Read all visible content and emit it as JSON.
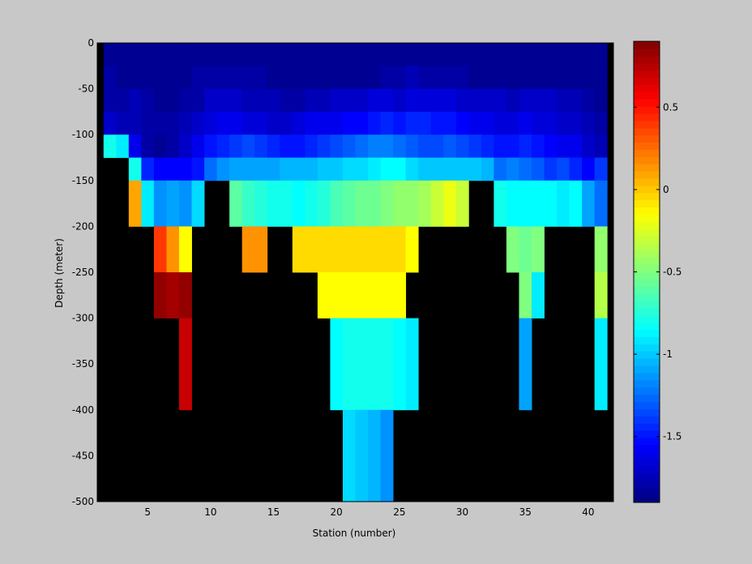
{
  "chart_data": {
    "type": "heatmap",
    "title": "",
    "xlabel": "Station (number)",
    "ylabel": "Depth (meter)",
    "xlim": [
      1,
      42
    ],
    "ylim": [
      -500,
      0
    ],
    "x_ticks": [
      5,
      10,
      15,
      20,
      25,
      30,
      35,
      40
    ],
    "y_ticks": [
      0,
      -50,
      -100,
      -150,
      -200,
      -250,
      -300,
      -350,
      -400,
      -450,
      -500
    ],
    "colorbar": {
      "colormap": "jet",
      "clim": [
        -1.9,
        0.9
      ],
      "ticks": [
        0.5,
        0,
        -0.5,
        -1,
        -1.5
      ]
    },
    "missing_color": "#000000",
    "stations": [
      2,
      3,
      4,
      5,
      6,
      7,
      8,
      9,
      10,
      11,
      12,
      13,
      14,
      15,
      16,
      17,
      18,
      19,
      20,
      21,
      22,
      23,
      24,
      25,
      26,
      27,
      28,
      29,
      30,
      31,
      32,
      33,
      34,
      35,
      36,
      37,
      38,
      39,
      40,
      41
    ],
    "depth_layers": [
      {
        "top": 0,
        "bottom": -25
      },
      {
        "top": -25,
        "bottom": -50
      },
      {
        "top": -50,
        "bottom": -75
      },
      {
        "top": -75,
        "bottom": -100
      },
      {
        "top": -100,
        "bottom": -125
      },
      {
        "top": -125,
        "bottom": -150
      },
      {
        "top": -150,
        "bottom": -200
      },
      {
        "top": -200,
        "bottom": -250
      },
      {
        "top": -250,
        "bottom": -300
      },
      {
        "top": -300,
        "bottom": -400
      },
      {
        "top": -400,
        "bottom": -500
      }
    ],
    "values": [
      [
        -1.85,
        -1.85,
        -1.85,
        -1.85,
        -1.85,
        -1.85,
        -1.85,
        -1.85,
        -1.85,
        -1.85,
        -1.85,
        -1.85,
        -1.85,
        -1.85,
        -1.85,
        -1.85,
        -1.85,
        -1.85,
        -1.85,
        -1.85,
        -1.85,
        -1.85,
        -1.85,
        -1.85,
        -1.85,
        -1.85,
        -1.85,
        -1.85,
        -1.85,
        -1.85,
        -1.85,
        -1.85,
        -1.85,
        -1.85,
        -1.85,
        -1.85,
        -1.85,
        -1.85,
        -1.85,
        -1.85
      ],
      [
        -1.8,
        -1.85,
        -1.85,
        -1.85,
        -1.85,
        -1.85,
        -1.85,
        -1.8,
        -1.8,
        -1.8,
        -1.8,
        -1.8,
        -1.8,
        -1.85,
        -1.85,
        -1.85,
        -1.85,
        -1.85,
        -1.85,
        -1.85,
        -1.85,
        -1.85,
        -1.8,
        -1.8,
        -1.75,
        -1.8,
        -1.8,
        -1.8,
        -1.8,
        -1.85,
        -1.85,
        -1.85,
        -1.85,
        -1.85,
        -1.85,
        -1.85,
        -1.85,
        -1.85,
        -1.85,
        -1.85
      ],
      [
        -1.8,
        -1.8,
        -1.75,
        -1.8,
        -1.85,
        -1.85,
        -1.8,
        -1.8,
        -1.7,
        -1.7,
        -1.7,
        -1.75,
        -1.75,
        -1.75,
        -1.8,
        -1.8,
        -1.75,
        -1.75,
        -1.7,
        -1.7,
        -1.7,
        -1.65,
        -1.65,
        -1.7,
        -1.65,
        -1.65,
        -1.65,
        -1.65,
        -1.7,
        -1.7,
        -1.7,
        -1.7,
        -1.75,
        -1.7,
        -1.7,
        -1.7,
        -1.75,
        -1.75,
        -1.8,
        -1.85
      ],
      [
        -1.7,
        -1.75,
        -1.75,
        -1.8,
        -1.8,
        -1.8,
        -1.75,
        -1.7,
        -1.65,
        -1.6,
        -1.6,
        -1.65,
        -1.65,
        -1.7,
        -1.7,
        -1.65,
        -1.6,
        -1.6,
        -1.6,
        -1.55,
        -1.55,
        -1.5,
        -1.45,
        -1.5,
        -1.45,
        -1.45,
        -1.5,
        -1.5,
        -1.55,
        -1.6,
        -1.6,
        -1.65,
        -1.65,
        -1.6,
        -1.65,
        -1.65,
        -1.7,
        -1.7,
        -1.75,
        -1.8
      ],
      [
        -0.8,
        -0.9,
        -1.6,
        -1.8,
        -1.85,
        -1.8,
        -1.7,
        -1.6,
        -1.5,
        -1.45,
        -1.4,
        -1.35,
        -1.4,
        -1.45,
        -1.5,
        -1.5,
        -1.45,
        -1.4,
        -1.35,
        -1.3,
        -1.25,
        -1.2,
        -1.2,
        -1.25,
        -1.3,
        -1.35,
        -1.35,
        -1.3,
        -1.35,
        -1.4,
        -1.45,
        -1.5,
        -1.5,
        -1.45,
        -1.5,
        -1.55,
        -1.6,
        -1.6,
        -1.7,
        -1.75
      ],
      [
        null,
        null,
        -0.8,
        -1.45,
        -1.55,
        -1.55,
        -1.55,
        -1.5,
        -1.25,
        -1.15,
        -1.1,
        -1.1,
        -1.1,
        -1.1,
        -1.05,
        -1.05,
        -1.05,
        -1.0,
        -1.0,
        -0.95,
        -0.95,
        -0.9,
        -0.85,
        -0.85,
        -0.95,
        -1.0,
        -1.0,
        -1.0,
        -1.0,
        -1.0,
        -1.05,
        -1.25,
        -1.2,
        -1.25,
        -1.3,
        -1.4,
        -1.35,
        -1.45,
        -1.55,
        -1.4
      ],
      [
        null,
        null,
        0.1,
        -0.9,
        -1.15,
        -1.1,
        -1.15,
        -0.95,
        null,
        null,
        -0.6,
        -0.7,
        -0.75,
        -0.8,
        -0.8,
        -0.85,
        -0.8,
        -0.75,
        -0.65,
        -0.6,
        -0.55,
        -0.55,
        -0.5,
        -0.45,
        -0.45,
        -0.4,
        -0.3,
        -0.2,
        -0.3,
        null,
        null,
        -0.8,
        -0.85,
        -0.85,
        -0.85,
        -0.85,
        -0.9,
        -0.85,
        -1.1,
        -1.25
      ],
      [
        null,
        null,
        null,
        null,
        0.4,
        0.15,
        -0.15,
        null,
        null,
        null,
        null,
        0.15,
        0.15,
        null,
        null,
        -0.05,
        -0.05,
        -0.05,
        -0.05,
        -0.05,
        -0.05,
        -0.05,
        -0.05,
        -0.05,
        -0.15,
        null,
        null,
        null,
        null,
        null,
        null,
        null,
        -0.5,
        -0.55,
        -0.5,
        null,
        null,
        null,
        null,
        -0.45
      ],
      [
        null,
        null,
        null,
        null,
        0.85,
        0.8,
        0.85,
        null,
        null,
        null,
        null,
        null,
        null,
        null,
        null,
        null,
        null,
        -0.15,
        -0.15,
        -0.15,
        -0.15,
        -0.15,
        -0.15,
        -0.15,
        null,
        null,
        null,
        null,
        null,
        null,
        null,
        null,
        null,
        -0.5,
        -0.9,
        null,
        null,
        null,
        null,
        -0.35
      ],
      [
        null,
        null,
        null,
        null,
        null,
        null,
        0.7,
        null,
        null,
        null,
        null,
        null,
        null,
        null,
        null,
        null,
        null,
        null,
        -0.85,
        -0.8,
        -0.8,
        -0.8,
        -0.8,
        -0.85,
        -0.9,
        null,
        null,
        null,
        null,
        null,
        null,
        null,
        null,
        -1.1,
        null,
        null,
        null,
        null,
        null,
        -0.9
      ],
      [
        null,
        null,
        null,
        null,
        null,
        null,
        null,
        null,
        null,
        null,
        null,
        null,
        null,
        null,
        null,
        null,
        null,
        null,
        null,
        -0.95,
        -1.0,
        -1.05,
        -1.15,
        null,
        null,
        null,
        null,
        null,
        null,
        null,
        null,
        null,
        null,
        null,
        null,
        null,
        null,
        null,
        null,
        null
      ]
    ]
  }
}
